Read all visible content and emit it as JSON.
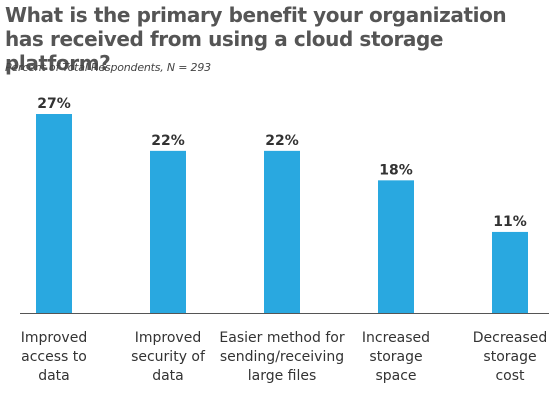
{
  "title": "What is the primary benefit your organization has received from using a cloud storage platform?",
  "subtitle": "Percent of Total Respondents, N = 293",
  "colors": {
    "bar": "#29a8e0",
    "text": "#333333",
    "axis": "#555555"
  },
  "chart_data": {
    "type": "bar",
    "title": "What is the primary benefit your organization has received from using a cloud storage platform?",
    "subtitle": "Percent of Total Respondents, N = 293",
    "categories": [
      "Improved access to data",
      "Improved security of data",
      "Easier method for sending/receiving large files",
      "Increased storage space",
      "Decreased storage cost"
    ],
    "category_lines": [
      [
        "Improved",
        "access to",
        "data"
      ],
      [
        "Improved",
        "security of",
        "data"
      ],
      [
        "Easier method for",
        "sending/receiving",
        "large files"
      ],
      [
        "Increased",
        "storage",
        "space"
      ],
      [
        "Decreased",
        "storage",
        "cost"
      ]
    ],
    "values": [
      27,
      22,
      22,
      18,
      11
    ],
    "value_labels": [
      "27%",
      "22%",
      "22%",
      "18%",
      "11%"
    ],
    "unit": "%",
    "ylim": [
      0,
      30
    ],
    "grid": false,
    "legend": "none"
  }
}
